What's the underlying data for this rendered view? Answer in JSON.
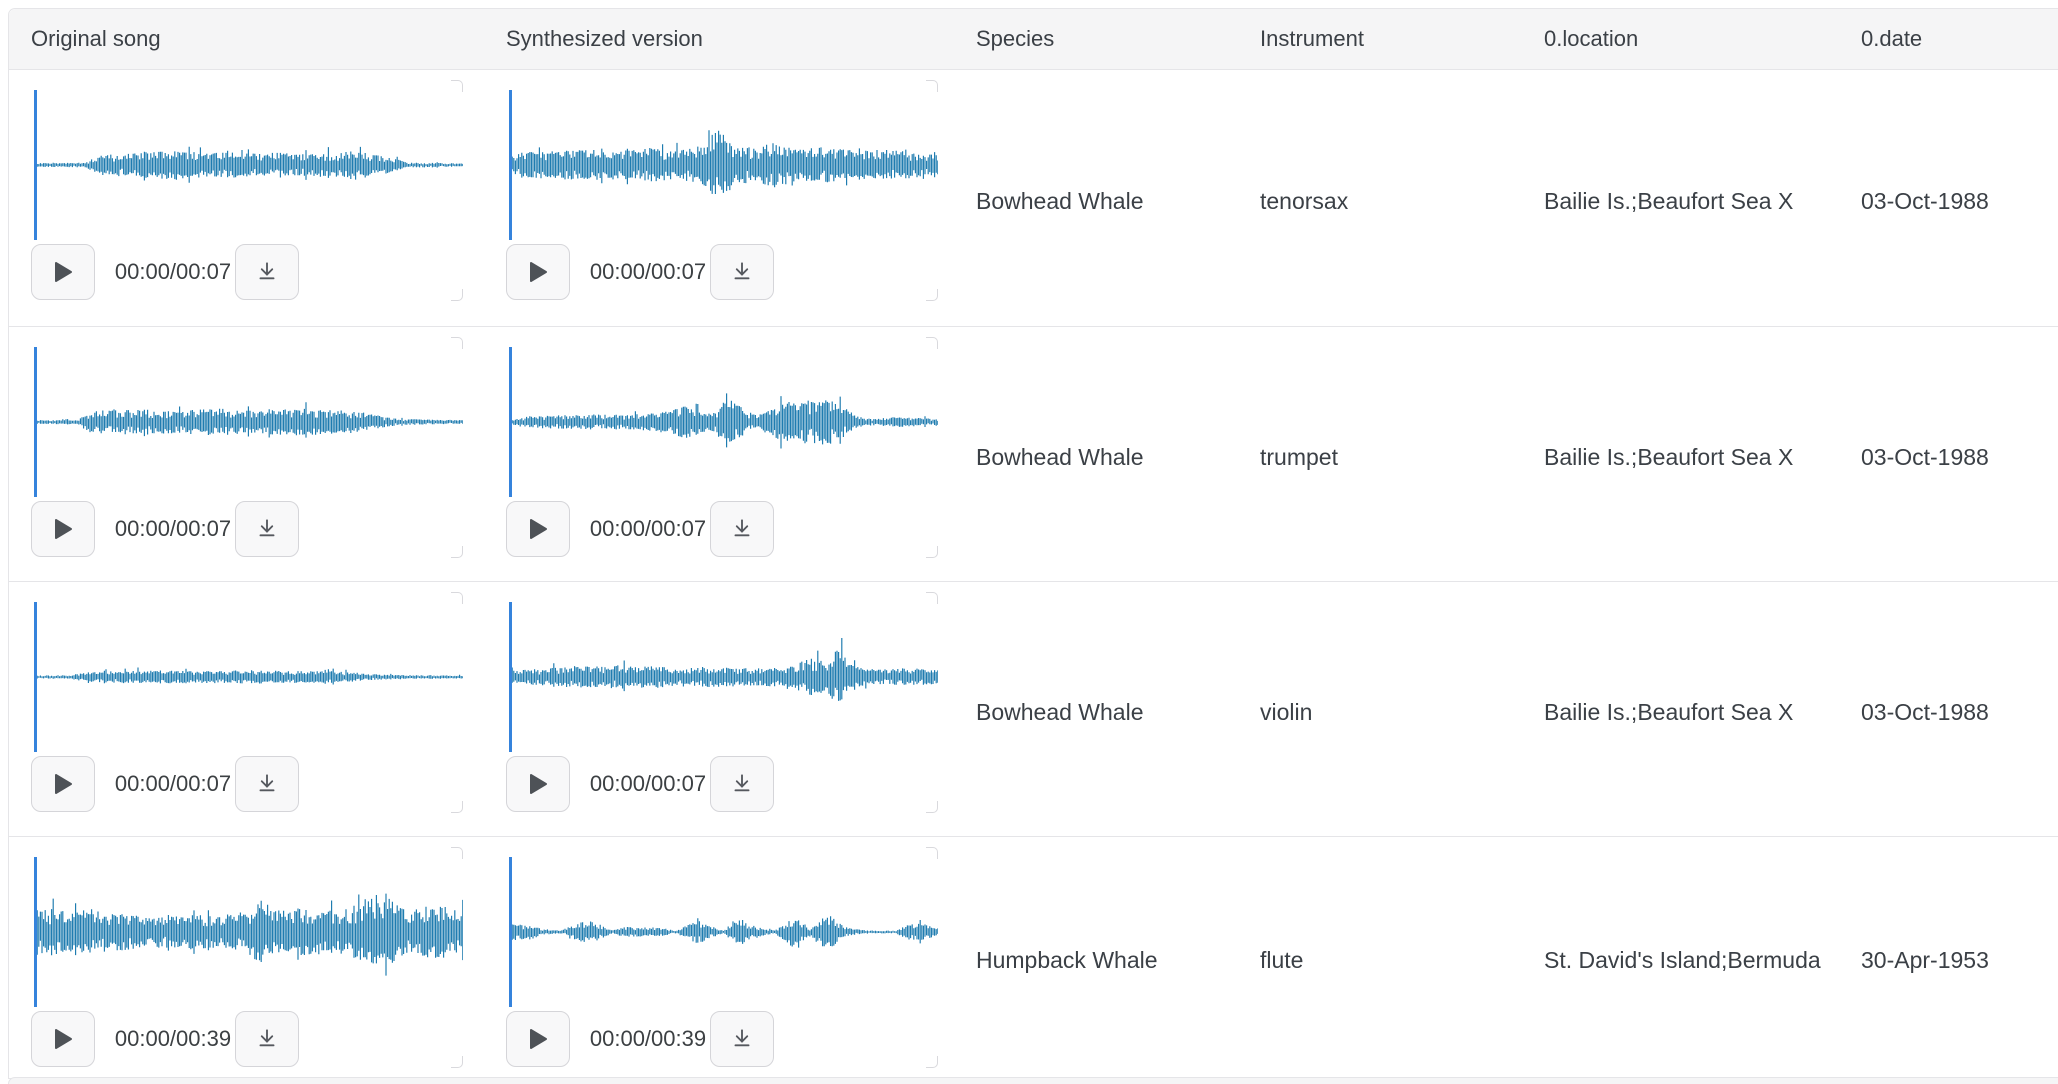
{
  "columns": [
    {
      "label": "Original song"
    },
    {
      "label": "Synthesized version"
    },
    {
      "label": "Species"
    },
    {
      "label": "Instrument"
    },
    {
      "label": "0.location"
    },
    {
      "label": "0.date"
    }
  ],
  "colors": {
    "waveform": "#1a79ae",
    "cursor": "#3583dc",
    "header_bg": "#f5f5f6",
    "border": "#e5e5e8",
    "icon": "#4e5257",
    "text": "#3b4046"
  },
  "rows": [
    {
      "species": "Bowhead Whale",
      "instrument": "tenorsax",
      "location": "Bailie Is.;Beaufort Sea X",
      "date": "03-Oct-1988",
      "original": {
        "time": "00:00/00:07",
        "envelope": [
          [
            0,
            0.025
          ],
          [
            0.12,
            0.03
          ],
          [
            0.15,
            0.13
          ],
          [
            0.2,
            0.15
          ],
          [
            0.28,
            0.17
          ],
          [
            0.33,
            0.2
          ],
          [
            0.4,
            0.16
          ],
          [
            0.47,
            0.17
          ],
          [
            0.52,
            0.15
          ],
          [
            0.58,
            0.17
          ],
          [
            0.64,
            0.15
          ],
          [
            0.7,
            0.17
          ],
          [
            0.75,
            0.2
          ],
          [
            0.79,
            0.16
          ],
          [
            0.83,
            0.1
          ],
          [
            0.87,
            0.04
          ],
          [
            0.92,
            0.03
          ],
          [
            1,
            0.02
          ]
        ]
      },
      "synthesized": {
        "time": "00:00/00:07",
        "envelope": [
          [
            0,
            0.1
          ],
          [
            0.03,
            0.17
          ],
          [
            0.1,
            0.19
          ],
          [
            0.18,
            0.21
          ],
          [
            0.26,
            0.19
          ],
          [
            0.33,
            0.23
          ],
          [
            0.4,
            0.2
          ],
          [
            0.45,
            0.26
          ],
          [
            0.49,
            0.5
          ],
          [
            0.52,
            0.26
          ],
          [
            0.57,
            0.24
          ],
          [
            0.62,
            0.3
          ],
          [
            0.67,
            0.22
          ],
          [
            0.73,
            0.24
          ],
          [
            0.8,
            0.2
          ],
          [
            0.87,
            0.21
          ],
          [
            0.93,
            0.18
          ],
          [
            1,
            0.13
          ]
        ]
      }
    },
    {
      "species": "Bowhead Whale",
      "instrument": "trumpet",
      "location": "Bailie Is.;Beaufort Sea X",
      "date": "03-Oct-1988",
      "original": {
        "time": "00:00/00:07",
        "envelope": [
          [
            0,
            0.025
          ],
          [
            0.1,
            0.03
          ],
          [
            0.13,
            0.14
          ],
          [
            0.2,
            0.18
          ],
          [
            0.27,
            0.15
          ],
          [
            0.35,
            0.16
          ],
          [
            0.43,
            0.18
          ],
          [
            0.5,
            0.15
          ],
          [
            0.57,
            0.17
          ],
          [
            0.63,
            0.18
          ],
          [
            0.7,
            0.16
          ],
          [
            0.76,
            0.14
          ],
          [
            0.8,
            0.09
          ],
          [
            0.85,
            0.04
          ],
          [
            1,
            0.025
          ]
        ]
      },
      "synthesized": {
        "time": "00:00/00:07",
        "envelope": [
          [
            0,
            0.04
          ],
          [
            0.05,
            0.08
          ],
          [
            0.12,
            0.09
          ],
          [
            0.2,
            0.1
          ],
          [
            0.28,
            0.1
          ],
          [
            0.34,
            0.12
          ],
          [
            0.38,
            0.16
          ],
          [
            0.41,
            0.22
          ],
          [
            0.44,
            0.16
          ],
          [
            0.47,
            0.12
          ],
          [
            0.5,
            0.26
          ],
          [
            0.52,
            0.3
          ],
          [
            0.55,
            0.16
          ],
          [
            0.58,
            0.08
          ],
          [
            0.61,
            0.2
          ],
          [
            0.64,
            0.28
          ],
          [
            0.67,
            0.26
          ],
          [
            0.7,
            0.3
          ],
          [
            0.73,
            0.32
          ],
          [
            0.76,
            0.28
          ],
          [
            0.79,
            0.16
          ],
          [
            0.82,
            0.05
          ],
          [
            0.87,
            0.04
          ],
          [
            0.9,
            0.07
          ],
          [
            0.94,
            0.06
          ],
          [
            0.97,
            0.05
          ],
          [
            1,
            0.04
          ]
        ]
      }
    },
    {
      "species": "Bowhead Whale",
      "instrument": "violin",
      "location": "Bailie Is.;Beaufort Sea X",
      "date": "03-Oct-1988",
      "original": {
        "time": "00:00/00:07",
        "envelope": [
          [
            0,
            0.02
          ],
          [
            0.08,
            0.025
          ],
          [
            0.12,
            0.06
          ],
          [
            0.2,
            0.08
          ],
          [
            0.3,
            0.09
          ],
          [
            0.4,
            0.08
          ],
          [
            0.5,
            0.09
          ],
          [
            0.6,
            0.08
          ],
          [
            0.68,
            0.08
          ],
          [
            0.75,
            0.06
          ],
          [
            0.8,
            0.035
          ],
          [
            0.9,
            0.025
          ],
          [
            1,
            0.02
          ]
        ]
      },
      "synthesized": {
        "time": "00:00/00:07",
        "envelope": [
          [
            0,
            0.08
          ],
          [
            0.05,
            0.1
          ],
          [
            0.1,
            0.12
          ],
          [
            0.15,
            0.15
          ],
          [
            0.2,
            0.14
          ],
          [
            0.25,
            0.16
          ],
          [
            0.3,
            0.14
          ],
          [
            0.35,
            0.15
          ],
          [
            0.4,
            0.1
          ],
          [
            0.45,
            0.14
          ],
          [
            0.5,
            0.13
          ],
          [
            0.55,
            0.12
          ],
          [
            0.6,
            0.13
          ],
          [
            0.64,
            0.12
          ],
          [
            0.68,
            0.2
          ],
          [
            0.71,
            0.26
          ],
          [
            0.74,
            0.22
          ],
          [
            0.77,
            0.4
          ],
          [
            0.79,
            0.2
          ],
          [
            0.82,
            0.12
          ],
          [
            0.87,
            0.1
          ],
          [
            0.92,
            0.12
          ],
          [
            0.96,
            0.11
          ],
          [
            1,
            0.09
          ]
        ]
      }
    },
    {
      "species": "Humpback Whale",
      "instrument": "flute",
      "location": "St. David's Island;Bermuda",
      "date": "30-Apr-1953",
      "original": {
        "time": "00:00/00:39",
        "envelope": [
          [
            0,
            0.18
          ],
          [
            0.02,
            0.34
          ],
          [
            0.05,
            0.3
          ],
          [
            0.09,
            0.26
          ],
          [
            0.13,
            0.32
          ],
          [
            0.17,
            0.26
          ],
          [
            0.22,
            0.24
          ],
          [
            0.27,
            0.2
          ],
          [
            0.32,
            0.22
          ],
          [
            0.37,
            0.24
          ],
          [
            0.42,
            0.22
          ],
          [
            0.47,
            0.26
          ],
          [
            0.5,
            0.3
          ],
          [
            0.53,
            0.44
          ],
          [
            0.56,
            0.3
          ],
          [
            0.6,
            0.28
          ],
          [
            0.63,
            0.32
          ],
          [
            0.67,
            0.3
          ],
          [
            0.7,
            0.28
          ],
          [
            0.74,
            0.34
          ],
          [
            0.78,
            0.42
          ],
          [
            0.81,
            0.52
          ],
          [
            0.84,
            0.4
          ],
          [
            0.87,
            0.3
          ],
          [
            0.9,
            0.32
          ],
          [
            0.93,
            0.4
          ],
          [
            0.96,
            0.34
          ],
          [
            1,
            0.28
          ]
        ]
      },
      "synthesized": {
        "time": "00:00/00:39",
        "envelope": [
          [
            0,
            0.1
          ],
          [
            0.02,
            0.12
          ],
          [
            0.05,
            0.1
          ],
          [
            0.08,
            0.04
          ],
          [
            0.12,
            0.02
          ],
          [
            0.16,
            0.12
          ],
          [
            0.19,
            0.15
          ],
          [
            0.22,
            0.08
          ],
          [
            0.24,
            0.02
          ],
          [
            0.27,
            0.07
          ],
          [
            0.3,
            0.06
          ],
          [
            0.33,
            0.07
          ],
          [
            0.36,
            0.05
          ],
          [
            0.39,
            0.02
          ],
          [
            0.42,
            0.1
          ],
          [
            0.44,
            0.16
          ],
          [
            0.47,
            0.08
          ],
          [
            0.5,
            0.02
          ],
          [
            0.52,
            0.14
          ],
          [
            0.54,
            0.18
          ],
          [
            0.56,
            0.1
          ],
          [
            0.58,
            0.08
          ],
          [
            0.6,
            0.04
          ],
          [
            0.62,
            0.02
          ],
          [
            0.66,
            0.2
          ],
          [
            0.68,
            0.14
          ],
          [
            0.7,
            0.06
          ],
          [
            0.73,
            0.2
          ],
          [
            0.75,
            0.24
          ],
          [
            0.78,
            0.08
          ],
          [
            0.8,
            0.04
          ],
          [
            0.85,
            0.02
          ],
          [
            0.9,
            0.02
          ],
          [
            0.93,
            0.1
          ],
          [
            0.96,
            0.12
          ],
          [
            0.98,
            0.08
          ],
          [
            1,
            0.05
          ]
        ]
      }
    }
  ]
}
